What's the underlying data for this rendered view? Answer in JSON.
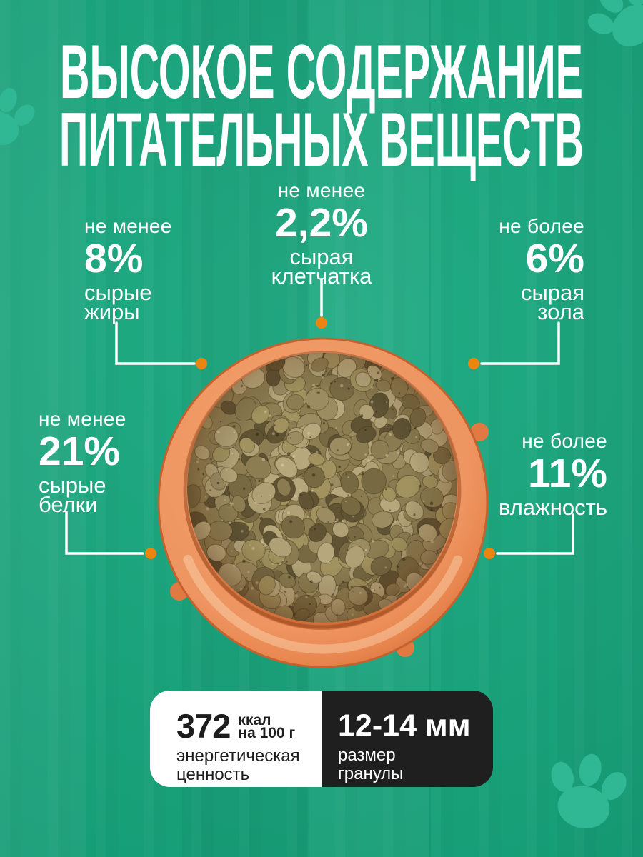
{
  "title": {
    "line1": "ВЫСОКОЕ СОДЕРЖАНИЕ",
    "line2": "ПИТАТЕЛЬНЫХ ВЕЩЕСТВ"
  },
  "callouts": [
    {
      "id": "fat",
      "qualifier": "не менее",
      "value": "8%",
      "label_line1": "сырые",
      "label_line2": "жиры"
    },
    {
      "id": "fiber",
      "qualifier": "не менее",
      "value": "2,2%",
      "label_line1": "сырая",
      "label_line2": "клетчатка"
    },
    {
      "id": "ash",
      "qualifier": "не более",
      "value": "6%",
      "label_line1": "сырая",
      "label_line2": "зола"
    },
    {
      "id": "protein",
      "qualifier": "не менее",
      "value": "21%",
      "label_line1": "сырые",
      "label_line2": "белки"
    },
    {
      "id": "moisture",
      "qualifier": "не более",
      "value": "11%",
      "label_line1": "влажность",
      "label_line2": ""
    }
  ],
  "energy": {
    "value": "372",
    "unit_line1": "ккал",
    "unit_line2": "на 100 г",
    "label_line1": "энергетическая",
    "label_line2": "ценность"
  },
  "granule": {
    "value": "12-14 мм",
    "label_line1": "размер",
    "label_line2": "гранулы"
  },
  "colors": {
    "background_teal": "#15a77d",
    "paw_teal": "#30b794",
    "accent_orange_dot": "#ec8410",
    "bowl_orange": "#e8874f",
    "kibble_brown": "#8d7d52",
    "panel_light": "#ffffff",
    "panel_dark": "#1f1f1f",
    "text_light": "#ffffff",
    "text_dark": "#1d1d1d"
  }
}
